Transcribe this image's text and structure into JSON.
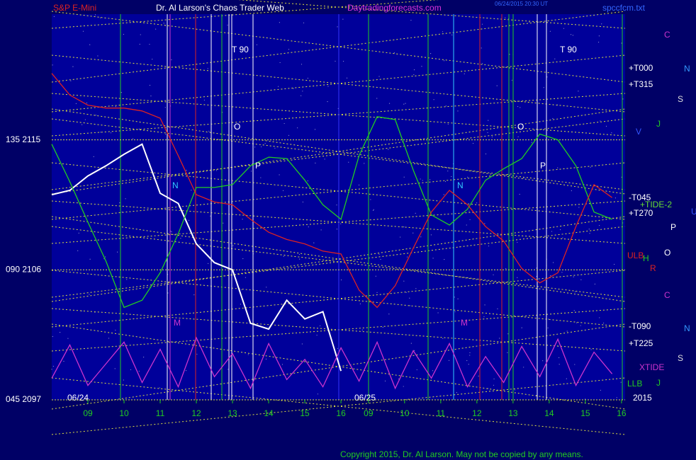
{
  "chart_data": {
    "type": "line",
    "title": "Dr. Al Larson's Chaos Trader Web",
    "instrument": "S&P E-Mini",
    "site": "Daytradingforecasts.com",
    "timestamp": "06/24/2015 20:30 UT",
    "file": "spccfcm.txt",
    "copyright": "Copyright 2015, Dr. Al Larson. May not be copied by any means.",
    "day_labels": [
      "06/24",
      "06/25",
      "2015"
    ],
    "xlim": [
      8.0,
      23.86
    ],
    "xticks": [
      {
        "value": 9,
        "label": "09"
      },
      10,
      11,
      12,
      13,
      14,
      15,
      16,
      {
        "value": 16.76,
        "label": "09"
      },
      {
        "value": 17.76,
        "label": "10"
      },
      {
        "value": 18.76,
        "label": "11"
      },
      {
        "value": 19.76,
        "label": "12"
      },
      {
        "value": 20.76,
        "label": "13"
      },
      {
        "value": 21.76,
        "label": "14"
      },
      {
        "value": 22.76,
        "label": "15"
      },
      {
        "value": 23.76,
        "label": "16"
      }
    ],
    "ylim": [
      2097,
      2123.7
    ],
    "yticks": [
      {
        "value": 2097,
        "label": "045  2097"
      },
      {
        "value": 2106,
        "label": "090  2106"
      },
      {
        "value": 2115,
        "label": "135  2115"
      }
    ],
    "grid": true,
    "x": [
      8.0,
      8.5,
      9.0,
      9.5,
      10.0,
      10.5,
      11.0,
      11.5,
      12.0,
      12.5,
      13.0,
      13.5,
      14.0,
      14.5,
      15.0,
      15.5,
      16.0,
      16.5,
      17.0,
      17.5,
      18.0,
      18.5,
      19.0,
      19.5,
      20.0,
      20.5,
      21.0,
      21.5,
      22.0,
      22.5,
      23.0,
      23.5
    ],
    "series": [
      {
        "color": "#ffffff",
        "values": [
          2111.2,
          2111.5,
          2112.5,
          2113.2,
          2114.0,
          2114.7,
          2111.3,
          2110.6,
          2107.8,
          2106.5,
          2106.0,
          2102.3,
          2101.9,
          2103.9,
          2102.6,
          2103.1,
          2099.0,
          null,
          null,
          null,
          null,
          null,
          null,
          null,
          null,
          null,
          null,
          null,
          null,
          null,
          null,
          null
        ]
      },
      {
        "color": "#22cc22",
        "values": [
          2114.7,
          2112.1,
          2109.3,
          2106.6,
          2103.4,
          2103.9,
          2105.8,
          2108.5,
          2111.7,
          2111.7,
          2111.9,
          2113.2,
          2113.8,
          2113.7,
          2112.2,
          2110.5,
          2109.5,
          2113.9,
          2116.6,
          2116.4,
          2112.9,
          2109.8,
          2109.1,
          2110.2,
          2112.2,
          2113.0,
          2113.7,
          2115.4,
          2115.0,
          2113.2,
          2110.0,
          2109.5
        ]
      },
      {
        "color": "#dd2222",
        "values": [
          2119.6,
          2118.1,
          2117.4,
          2117.2,
          2117.2,
          2117.0,
          2116.5,
          2113.9,
          2111.2,
          2110.7,
          2110.5,
          2109.5,
          2108.6,
          2108.1,
          2107.8,
          2107.3,
          2107.1,
          2104.6,
          2103.4,
          2104.9,
          2107.5,
          2110.0,
          2111.5,
          2110.5,
          2109.0,
          2108.0,
          2106.1,
          2105.1,
          2105.8,
          2109.0,
          2111.9,
          2111.0
        ]
      },
      {
        "name": "XTIDE",
        "color": "#cc33cc",
        "values": [
          2098.5,
          2100.8,
          2098.0,
          2099.5,
          2101.0,
          2098.2,
          2100.5,
          2097.9,
          2101.3,
          2098.6,
          2100.2,
          2097.8,
          2100.9,
          2098.4,
          2099.8,
          2097.9,
          2100.6,
          2098.3,
          2101.0,
          2097.8,
          2100.4,
          2098.5,
          2100.9,
          2097.9,
          2100.0,
          2098.2,
          2100.7,
          2098.6,
          2101.2,
          2098.0,
          2100.3,
          2098.8
        ]
      }
    ],
    "annotations": [
      {
        "text": "+T000",
        "color": "#ffffff"
      },
      {
        "text": "+T315",
        "color": "#ffffff"
      },
      {
        "text": "-T045",
        "color": "#ffffff"
      },
      {
        "text": "+TIDE-2",
        "color": "#66dd33"
      },
      {
        "text": "+T270",
        "color": "#ffffff"
      },
      {
        "text": "-T090",
        "color": "#ffffff"
      },
      {
        "text": "+T225",
        "color": "#ffffff"
      },
      {
        "text": "LLB",
        "color": "#22cc22"
      },
      {
        "text": "ULB",
        "color": "#dd2222"
      },
      {
        "text": "C",
        "color": "#cc33cc"
      },
      {
        "text": "N",
        "color": "#3399ff"
      },
      {
        "text": "S",
        "color": "#dddddd"
      },
      {
        "text": "J",
        "color": "#22cc22"
      },
      {
        "text": "V",
        "color": "#3355ff"
      },
      {
        "text": "U",
        "color": "#3355ff"
      },
      {
        "text": "P",
        "color": "#ffffff"
      },
      {
        "text": "O",
        "color": "#ffffff"
      },
      {
        "text": "R",
        "color": "#dd2222"
      },
      {
        "text": "H",
        "color": "#22cc22"
      },
      {
        "text": "C",
        "color": "#cc33cc"
      },
      {
        "text": "N",
        "color": "#3399ff"
      },
      {
        "text": "S",
        "color": "#dddddd"
      },
      {
        "text": "J",
        "color": "#22cc22"
      },
      {
        "text": "T   90",
        "color": "#ffffff"
      },
      {
        "text": "T   90",
        "color": "#ffffff"
      },
      {
        "text": "O",
        "color": "#ffffff"
      },
      {
        "text": "P",
        "color": "#ffffff"
      },
      {
        "text": "O",
        "color": "#ffffff"
      },
      {
        "text": "P",
        "color": "#ffffff"
      },
      {
        "text": "N",
        "color": "#33ccff"
      },
      {
        "text": "N",
        "color": "#33ccff"
      },
      {
        "text": "M",
        "color": "#cc33cc"
      },
      {
        "text": "M",
        "color": "#cc33cc"
      }
    ]
  }
}
